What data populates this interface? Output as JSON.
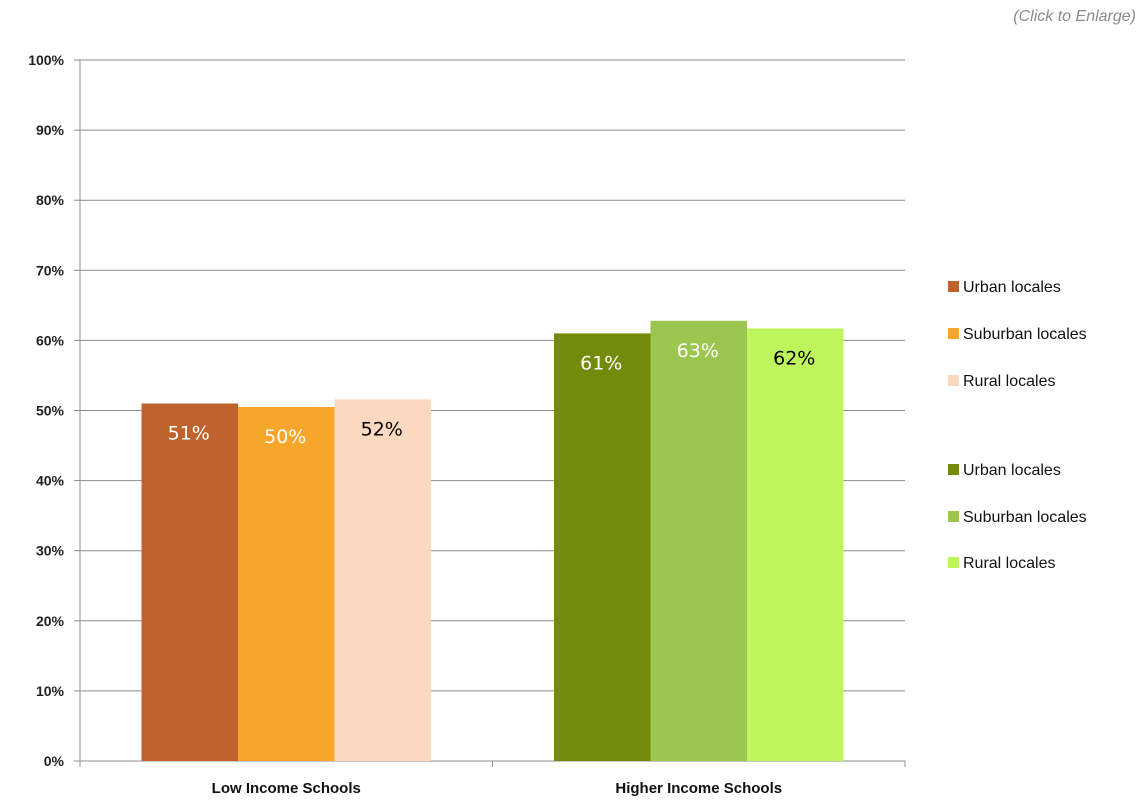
{
  "header": {
    "enlarge_link": "(Click to Enlarge)"
  },
  "chart_data": {
    "type": "bar",
    "title": "",
    "xlabel": "",
    "ylabel": "",
    "categories": [
      "Low Income Schools",
      "Higher Income Schools"
    ],
    "ylim": [
      0,
      100
    ],
    "y_unit": "%",
    "y_ticks": [
      0,
      10,
      20,
      30,
      40,
      50,
      60,
      70,
      80,
      90,
      100
    ],
    "grid": true,
    "legend_position": "right",
    "series": [
      {
        "category": "Low Income Schools",
        "name": "Urban locales",
        "value": 51,
        "label": "51%",
        "color": "#c0622b",
        "label_color": "#ffffff"
      },
      {
        "category": "Low Income Schools",
        "name": "Suburban locales",
        "value": 50.5,
        "label": "50%",
        "color": "#f7a52b",
        "label_color": "#ffffff"
      },
      {
        "category": "Low Income Schools",
        "name": "Rural locales",
        "value": 51.6,
        "label": "52%",
        "color": "#fbd9c0",
        "label_color": "#000000"
      },
      {
        "category": "Higher Income Schools",
        "name": "Urban locales",
        "value": 61,
        "label": "61%",
        "color": "#748a0b",
        "label_color": "#ffffff"
      },
      {
        "category": "Higher Income Schools",
        "name": "Suburban locales",
        "value": 62.8,
        "label": "63%",
        "color": "#9dc651",
        "label_color": "#ffffff"
      },
      {
        "category": "Higher Income Schools",
        "name": "Rural locales",
        "value": 61.7,
        "label": "62%",
        "color": "#bef55c",
        "label_color": "#000000"
      }
    ],
    "legend": [
      {
        "label": "Urban locales",
        "color": "#c0622b"
      },
      {
        "label": "Suburban locales",
        "color": "#f7a52b"
      },
      {
        "label": "Rural locales",
        "color": "#fbd9c0"
      },
      {
        "label": "Urban locales",
        "color": "#748a0b"
      },
      {
        "label": "Suburban locales",
        "color": "#9dc651"
      },
      {
        "label": "Rural locales",
        "color": "#bef55c"
      }
    ]
  }
}
